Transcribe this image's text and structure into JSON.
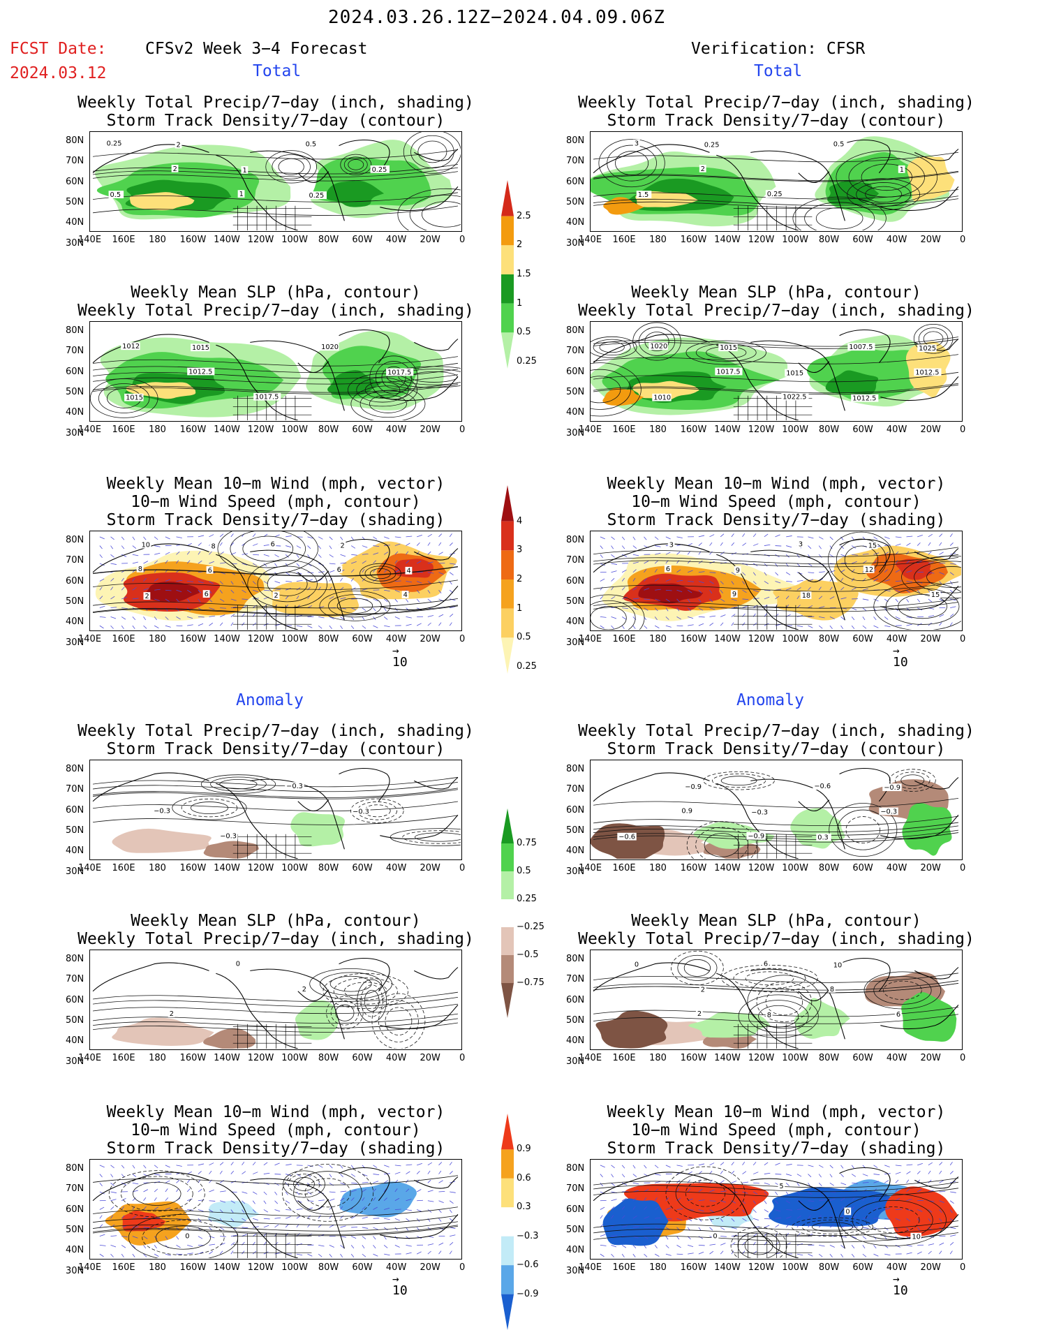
{
  "header": {
    "title": "2024.03.26.12Z−2024.04.09.06Z",
    "fcst_label": "FCST Date:",
    "fcst_date": "2024.03.12",
    "left_title": "CFSv2 Week 3−4 Forecast",
    "right_title": "Verification: CFSR",
    "total_label": "Total",
    "anomaly_label": "Anomaly"
  },
  "titles": {
    "precip_storm": [
      "Weekly Total Precip/7−day (inch, shading)",
      "Storm Track Density/7−day (contour)"
    ],
    "slp_precip": [
      "Weekly Mean SLP (hPa, contour)",
      "Weekly Total Precip/7−day (inch, shading)"
    ],
    "wind": [
      "Weekly Mean 10−m Wind (mph, vector)",
      "10−m Wind Speed (mph, contour)",
      "Storm Track Density/7−day (shading)"
    ]
  },
  "axes": {
    "lat_ticks": [
      "80N",
      "70N",
      "60N",
      "50N",
      "40N",
      "30N"
    ],
    "lon_ticks": [
      "140E",
      "160E",
      "180",
      "160W",
      "140W",
      "120W",
      "100W",
      "80W",
      "60W",
      "40W",
      "20W",
      "0"
    ]
  },
  "vector_ref": "10",
  "colorbars": {
    "total_precip": {
      "labels": [
        "2.5",
        "2",
        "1.5",
        "1",
        "0.5",
        "0.25"
      ],
      "colors": [
        "#d42a1a",
        "#f39b0f",
        "#fde07a",
        "#1a9a22",
        "#50d24e",
        "#b4f0a6"
      ]
    },
    "total_storm": {
      "labels": [
        "4",
        "3",
        "2",
        "1",
        "0.5",
        "0.25"
      ],
      "colors": [
        "#9e0f12",
        "#d9301b",
        "#ee6a14",
        "#f5a21e",
        "#fcd061",
        "#fdf4b4"
      ]
    },
    "anom_precip": {
      "labels": [
        "0.75",
        "0.5",
        "0.25",
        "−0.25",
        "−0.5",
        "−0.75"
      ],
      "colors": [
        "#1a9a22",
        "#50d24e",
        "#b4f0a6",
        "#ffffff",
        "#e3c5b8",
        "#b48a78",
        "#7e5444"
      ]
    },
    "anom_storm": {
      "labels": [
        "0.9",
        "0.6",
        "0.3",
        "−0.3",
        "−0.6",
        "−0.9"
      ],
      "colors": [
        "#ee3a1a",
        "#f5a21e",
        "#fde07a",
        "#ffffff",
        "#c2ebf7",
        "#5aa7e8",
        "#1a5fcf"
      ]
    }
  },
  "panels": {
    "fc_total_precip": [
      "0.25",
      "2",
      "1",
      "0.5",
      "0.25",
      "0.5",
      "2",
      "1",
      "0.25"
    ],
    "ob_total_precip": [
      "3",
      "2",
      "0.25",
      "0.5",
      "1",
      "1.5",
      "0.25"
    ],
    "fc_total_slp": [
      "1012",
      "1012.5",
      "1017.5",
      "1020",
      "1017.5",
      "1015",
      "1015"
    ],
    "ob_total_slp": [
      "1020",
      "1017.5",
      "1022.5",
      "1007.5",
      "1012.5",
      "1010",
      "1015",
      "1015",
      "1012.5",
      "1025"
    ],
    "fc_total_wind": [
      "8",
      "6",
      "6",
      "6",
      "4",
      "10",
      "6",
      "2",
      "2",
      "4",
      "2",
      "8"
    ],
    "ob_total_wind": [
      "6",
      "9",
      "3",
      "12",
      "15",
      "3",
      "9",
      "18",
      "15"
    ],
    "fc_anom_precip": [
      "−0.3",
      "−0.3",
      "−0.3",
      "−0.3"
    ],
    "ob_anom_precip": [
      "0.9",
      "−0.9",
      "−0.6",
      "−0.3",
      "−0.6",
      "−0.9",
      "−0.3",
      "0.3",
      "−0.9"
    ],
    "fc_anom_slp": [
      "2",
      "0",
      "2"
    ],
    "ob_anom_slp": [
      "2",
      "6",
      "8",
      "6",
      "0",
      "2",
      "8",
      "10"
    ],
    "fc_anom_wind": [
      "0"
    ],
    "ob_anom_wind": [
      "0",
      "5",
      "0",
      "10"
    ]
  }
}
